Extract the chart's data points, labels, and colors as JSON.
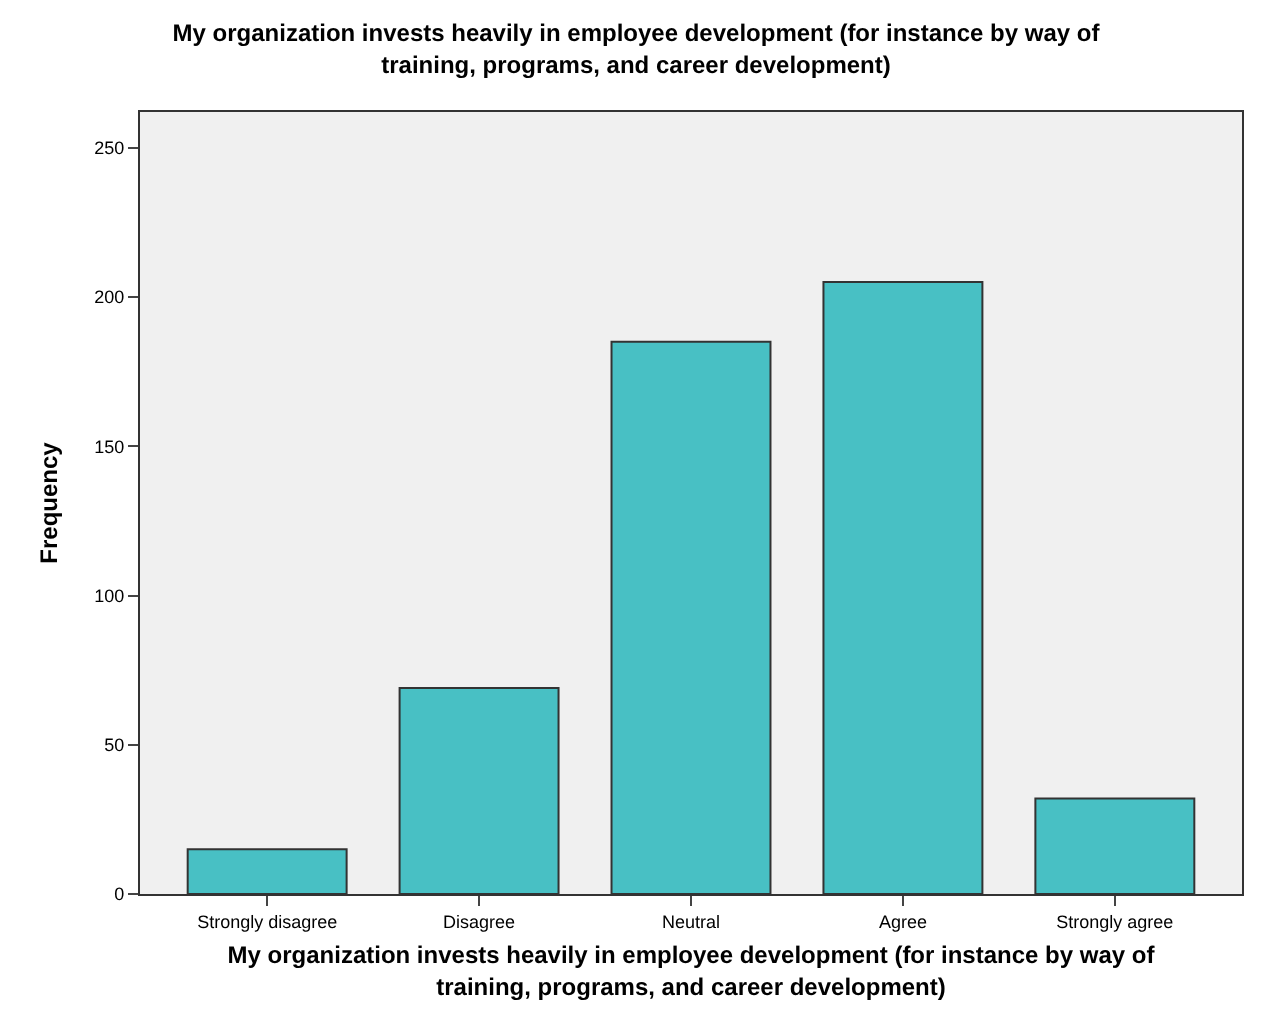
{
  "chart_data": {
    "type": "bar",
    "title": "My organization invests heavily in employee development (for instance by way of training, programs, and career development)",
    "xlabel": "My organization invests heavily in employee development (for instance by way of training, programs, and career development)",
    "ylabel": "Frequency",
    "categories": [
      "Strongly disagree",
      "Disagree",
      "Neutral",
      "Agree",
      "Strongly agree"
    ],
    "values": [
      15,
      69,
      185,
      205,
      32
    ],
    "color": "#48c0c4",
    "ylim": [
      0,
      262
    ],
    "yticks": [
      0,
      50,
      100,
      150,
      200,
      250
    ],
    "grid": false
  }
}
